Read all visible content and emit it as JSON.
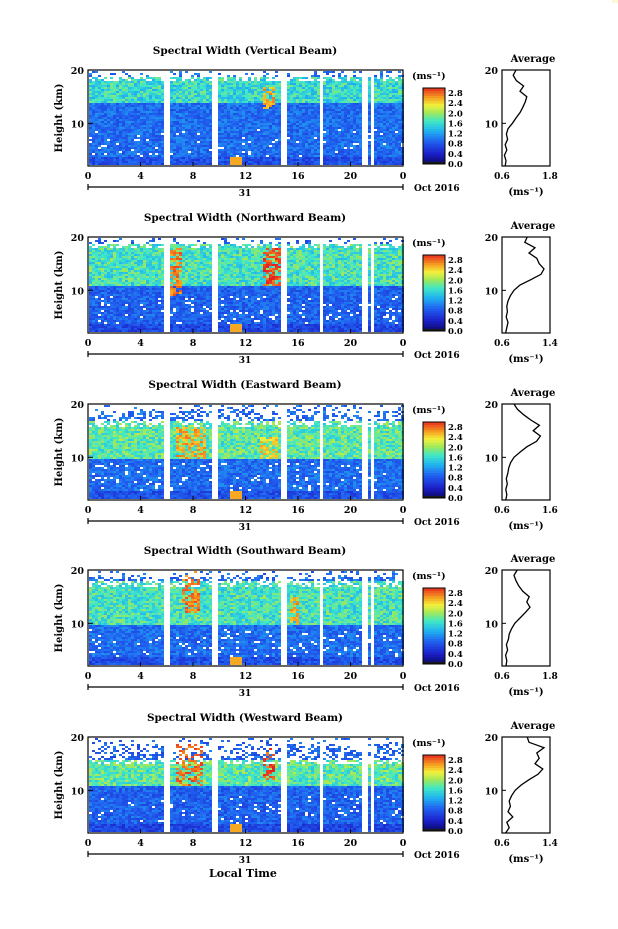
{
  "figure": {
    "x_axis_title": "Local Time",
    "date_label": "Oct 2016",
    "day_label": "31",
    "height_label": "Height (km)",
    "unit_label": "(ms⁻¹)",
    "average_title": "Average",
    "x_ticks": [
      "0",
      "4",
      "8",
      "12",
      "16",
      "20",
      "0"
    ],
    "colorbar_ticks": [
      "2.8",
      "2.4",
      "2.0",
      "1.6",
      "1.2",
      "0.8",
      "0.4",
      "0.0"
    ]
  },
  "chart_data": [
    {
      "type": "heatmap",
      "title": "Spectral Width (Vertical Beam)",
      "xlabel": "",
      "ylabel": "Height (km)",
      "xlim": [
        0,
        24
      ],
      "ylim": [
        2,
        20
      ],
      "x_ticks": [
        "0",
        "4",
        "8",
        "12",
        "16",
        "20",
        "0"
      ],
      "y_ticks": [
        10,
        20
      ],
      "colorbar": {
        "label": "(ms⁻¹)",
        "range": [
          0,
          3.0
        ],
        "ticks": [
          0.0,
          0.4,
          0.8,
          1.2,
          1.6,
          2.0,
          2.4,
          2.8
        ]
      },
      "average_profile": {
        "title": "Average",
        "xlim": [
          0.6,
          1.8
        ],
        "x_ticks": [
          "0.6",
          "1.8"
        ],
        "ylim": [
          2,
          20
        ],
        "xlabel": "(ms⁻¹)",
        "height_km": [
          2,
          3,
          4,
          5,
          6,
          7,
          8,
          9,
          10,
          11,
          12,
          13,
          14,
          15,
          16,
          17,
          18,
          19,
          20
        ],
        "width_ms": [
          0.68,
          0.7,
          0.66,
          0.72,
          0.68,
          0.74,
          0.71,
          0.75,
          0.86,
          0.95,
          1.05,
          1.12,
          1.18,
          1.22,
          1.05,
          1.14,
          0.96,
          0.88,
          0.95
        ]
      }
    },
    {
      "type": "heatmap",
      "title": "Spectral Width (Northward Beam)",
      "xlabel": "",
      "ylabel": "Height (km)",
      "xlim": [
        0,
        24
      ],
      "ylim": [
        2,
        20
      ],
      "x_ticks": [
        "0",
        "4",
        "8",
        "12",
        "16",
        "20",
        "0"
      ],
      "y_ticks": [
        10,
        20
      ],
      "colorbar": {
        "label": "(ms⁻¹)",
        "range": [
          0,
          3.0
        ],
        "ticks": [
          0.0,
          0.4,
          0.8,
          1.2,
          1.6,
          2.0,
          2.4,
          2.8
        ]
      },
      "average_profile": {
        "title": "Average",
        "xlim": [
          0.6,
          1.4
        ],
        "x_ticks": [
          "0.6",
          "1.4"
        ],
        "ylim": [
          2,
          20
        ],
        "xlabel": "(ms⁻¹)",
        "height_km": [
          2,
          3,
          4,
          5,
          6,
          7,
          8,
          9,
          10,
          11,
          12,
          13,
          14,
          15,
          16,
          17,
          18,
          19,
          20
        ],
        "width_ms": [
          0.66,
          0.68,
          0.7,
          0.67,
          0.69,
          0.68,
          0.7,
          0.74,
          0.8,
          0.9,
          1.08,
          1.25,
          1.3,
          1.22,
          1.18,
          1.05,
          1.15,
          0.98,
          1.02
        ]
      }
    },
    {
      "type": "heatmap",
      "title": "Spectral Width (Eastward Beam)",
      "xlabel": "",
      "ylabel": "Height (km)",
      "xlim": [
        0,
        24
      ],
      "ylim": [
        2,
        20
      ],
      "x_ticks": [
        "0",
        "4",
        "8",
        "12",
        "16",
        "20",
        "0"
      ],
      "y_ticks": [
        10,
        20
      ],
      "colorbar": {
        "label": "(ms⁻¹)",
        "range": [
          0,
          3.0
        ],
        "ticks": [
          0.0,
          0.4,
          0.8,
          1.2,
          1.6,
          2.0,
          2.4,
          2.8
        ]
      },
      "average_profile": {
        "title": "Average",
        "xlim": [
          0.6,
          1.6
        ],
        "x_ticks": [
          "0.6",
          "1.6"
        ],
        "ylim": [
          2,
          20
        ],
        "xlabel": "(ms⁻¹)",
        "height_km": [
          2,
          3,
          4,
          5,
          6,
          7,
          8,
          9,
          10,
          11,
          12,
          13,
          14,
          15,
          16,
          17,
          18,
          19,
          20
        ],
        "width_ms": [
          0.68,
          0.7,
          0.68,
          0.71,
          0.69,
          0.72,
          0.74,
          0.78,
          0.85,
          0.98,
          1.12,
          1.32,
          1.4,
          1.25,
          1.38,
          1.2,
          1.05,
          0.92,
          0.85
        ]
      }
    },
    {
      "type": "heatmap",
      "title": "Spectral Width (Southward Beam)",
      "xlabel": "",
      "ylabel": "Height (km)",
      "xlim": [
        0,
        24
      ],
      "ylim": [
        2,
        20
      ],
      "x_ticks": [
        "0",
        "4",
        "8",
        "12",
        "16",
        "20",
        "0"
      ],
      "y_ticks": [
        10,
        20
      ],
      "colorbar": {
        "label": "(ms⁻¹)",
        "range": [
          0,
          3.0
        ],
        "ticks": [
          0.0,
          0.4,
          0.8,
          1.2,
          1.6,
          2.0,
          2.4,
          2.8
        ]
      },
      "average_profile": {
        "title": "Average",
        "xlim": [
          0.6,
          1.8
        ],
        "x_ticks": [
          "0.6",
          "1.8"
        ],
        "ylim": [
          2,
          20
        ],
        "xlabel": "(ms⁻¹)",
        "height_km": [
          2,
          3,
          4,
          5,
          6,
          7,
          8,
          9,
          10,
          11,
          12,
          13,
          14,
          15,
          16,
          17,
          18,
          19,
          20
        ],
        "width_ms": [
          0.7,
          0.72,
          0.69,
          0.74,
          0.71,
          0.76,
          0.78,
          0.84,
          0.92,
          1.05,
          1.18,
          1.3,
          1.22,
          1.28,
          1.12,
          1.02,
          0.95,
          0.9,
          0.98
        ]
      }
    },
    {
      "type": "heatmap",
      "title": "Spectral Width (Westward Beam)",
      "xlabel": "Local Time",
      "ylabel": "Height (km)",
      "xlim": [
        0,
        24
      ],
      "ylim": [
        2,
        20
      ],
      "x_ticks": [
        "0",
        "4",
        "8",
        "12",
        "16",
        "20",
        "0"
      ],
      "y_ticks": [
        10,
        20
      ],
      "colorbar": {
        "label": "(ms⁻¹)",
        "range": [
          0,
          3.0
        ],
        "ticks": [
          0.0,
          0.4,
          0.8,
          1.2,
          1.6,
          2.0,
          2.4,
          2.8
        ]
      },
      "average_profile": {
        "title": "Average",
        "xlim": [
          0.6,
          1.4
        ],
        "x_ticks": [
          "0.6",
          "1.4"
        ],
        "ylim": [
          2,
          20
        ],
        "xlabel": "(ms⁻¹)",
        "height_km": [
          2,
          3,
          4,
          5,
          6,
          7,
          8,
          9,
          10,
          11,
          12,
          13,
          14,
          15,
          16,
          17,
          18,
          19,
          20
        ],
        "width_ms": [
          0.66,
          0.72,
          0.68,
          0.78,
          0.7,
          0.74,
          0.72,
          0.76,
          0.82,
          0.92,
          1.05,
          1.2,
          1.28,
          1.15,
          1.22,
          1.18,
          1.3,
          1.05,
          1.02
        ]
      }
    }
  ]
}
